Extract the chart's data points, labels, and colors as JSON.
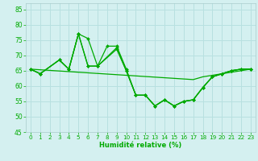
{
  "title": "",
  "xlabel": "Humidité relative (%)",
  "ylabel": "",
  "background_color": "#d4f0f0",
  "grid_color": "#b8e0e0",
  "line_color": "#00aa00",
  "xlim": [
    -0.5,
    23.5
  ],
  "ylim": [
    45,
    87
  ],
  "yticks": [
    45,
    50,
    55,
    60,
    65,
    70,
    75,
    80,
    85
  ],
  "xticks": [
    0,
    1,
    2,
    3,
    4,
    5,
    6,
    7,
    8,
    9,
    10,
    11,
    12,
    13,
    14,
    15,
    16,
    17,
    18,
    19,
    20,
    21,
    22,
    23
  ],
  "series": [
    {
      "x": [
        0,
        1,
        2,
        3,
        4,
        5,
        6,
        7,
        8,
        9,
        10,
        11,
        12,
        13,
        14,
        15,
        16,
        17,
        18,
        19,
        20,
        21,
        22,
        23
      ],
      "y": [
        65.5,
        65.3,
        65.1,
        64.9,
        64.7,
        64.5,
        64.3,
        64.1,
        63.9,
        63.7,
        63.5,
        63.3,
        63.1,
        62.9,
        62.7,
        62.5,
        62.3,
        62.1,
        63.0,
        63.5,
        64.0,
        64.5,
        65.0,
        65.5
      ],
      "marker": false
    },
    {
      "x": [
        0,
        1,
        3,
        4,
        5,
        6,
        7,
        9,
        10,
        11,
        12,
        13,
        14,
        15,
        16,
        17,
        18,
        19,
        20,
        21,
        22,
        23
      ],
      "y": [
        65.5,
        64.0,
        68.5,
        65.5,
        77.0,
        75.5,
        66.5,
        72.0,
        65.0,
        57.0,
        57.0,
        53.5,
        55.5,
        53.5,
        55.0,
        55.5,
        59.5,
        63.0,
        64.0,
        65.0,
        65.5,
        65.5
      ],
      "marker": true
    },
    {
      "x": [
        0,
        1,
        3,
        4,
        5,
        6,
        7,
        9,
        10,
        11,
        12,
        13,
        14,
        15,
        16,
        17,
        18,
        19,
        20,
        21,
        22,
        23
      ],
      "y": [
        65.5,
        64.0,
        68.5,
        65.5,
        77.0,
        66.5,
        66.5,
        72.5,
        65.0,
        57.0,
        57.0,
        53.5,
        55.5,
        53.5,
        55.0,
        55.5,
        59.5,
        63.0,
        64.0,
        65.0,
        65.5,
        65.5
      ],
      "marker": true
    },
    {
      "x": [
        0,
        1,
        3,
        4,
        5,
        6,
        7,
        8,
        9,
        10,
        11,
        12,
        13,
        14,
        15,
        16,
        17,
        18,
        19,
        20,
        21,
        22,
        23
      ],
      "y": [
        65.5,
        64.0,
        68.5,
        65.5,
        77.0,
        66.5,
        66.5,
        73.0,
        73.0,
        65.5,
        57.0,
        57.0,
        53.5,
        55.5,
        53.5,
        55.0,
        55.5,
        59.5,
        63.0,
        64.0,
        65.0,
        65.5,
        65.5
      ],
      "marker": true
    }
  ]
}
